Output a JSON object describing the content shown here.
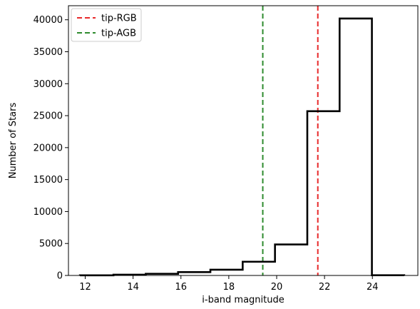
{
  "chart_data": {
    "type": "histogram",
    "title": "",
    "xlabel": "i-band magnitude",
    "ylabel": "Number of Stars",
    "xlim": [
      11.3,
      25.9
    ],
    "ylim": [
      0,
      42200
    ],
    "xticks": [
      12,
      14,
      16,
      18,
      20,
      22,
      24
    ],
    "yticks": [
      0,
      5000,
      10000,
      15000,
      20000,
      25000,
      30000,
      35000,
      40000
    ],
    "grid": false,
    "legend_position": "top-left",
    "histogram": {
      "bin_edges": [
        11.78,
        13.18,
        14.53,
        15.88,
        17.23,
        18.58,
        19.93,
        21.28,
        22.63,
        23.98,
        25.33
      ],
      "counts": [
        20,
        120,
        260,
        520,
        900,
        2150,
        4850,
        25700,
        40200,
        30
      ],
      "color": "#000000"
    },
    "vlines": [
      {
        "name": "tip-RGB",
        "x": 21.72,
        "color": "#e8292a",
        "style": "dashed"
      },
      {
        "name": "tip-AGB",
        "x": 19.42,
        "color": "#2e8b2e",
        "style": "dashed"
      }
    ]
  }
}
